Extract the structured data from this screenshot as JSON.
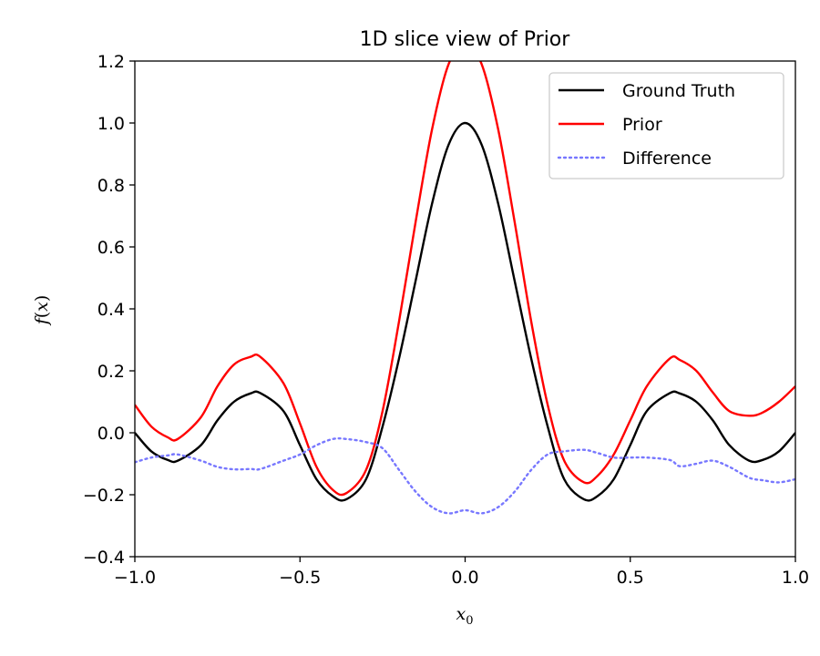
{
  "chart_data": {
    "type": "line",
    "title": "1D slice view of Prior",
    "xlabel": "x",
    "xlabel_sub": "0",
    "ylabel_f": "f",
    "ylabel_paren_open": "(",
    "ylabel_x": "x",
    "ylabel_paren_close": ")",
    "xlim": [
      -1.0,
      1.0
    ],
    "ylim": [
      -0.4,
      1.2
    ],
    "xticks": [
      -1.0,
      -0.5,
      0.0,
      0.5,
      1.0
    ],
    "xtick_labels": [
      "−1.0",
      "−0.5",
      "0.0",
      "0.5",
      "1.0"
    ],
    "yticks": [
      -0.4,
      -0.2,
      0.0,
      0.2,
      0.4,
      0.6,
      0.8,
      1.0,
      1.2
    ],
    "ytick_labels": [
      "−0.4",
      "−0.2",
      "0.0",
      "0.2",
      "0.4",
      "0.6",
      "0.8",
      "1.0",
      "1.2"
    ],
    "grid": false,
    "legend_position": "top-right",
    "x": [
      -1.0,
      -0.95,
      -0.9,
      -0.87,
      -0.8,
      -0.75,
      -0.7,
      -0.65,
      -0.62,
      -0.55,
      -0.5,
      -0.45,
      -0.4,
      -0.36,
      -0.3,
      -0.25,
      -0.2,
      -0.15,
      -0.1,
      -0.05,
      0.0,
      0.05,
      0.1,
      0.15,
      0.2,
      0.25,
      0.3,
      0.36,
      0.4,
      0.45,
      0.5,
      0.55,
      0.62,
      0.65,
      0.7,
      0.75,
      0.8,
      0.86,
      0.9,
      0.95,
      1.0
    ],
    "series": [
      {
        "name": "Ground Truth",
        "color": "#000000",
        "style": "solid",
        "values": [
          0.0,
          -0.06,
          -0.088,
          -0.09,
          -0.04,
          0.04,
          0.1,
          0.127,
          0.128,
          0.07,
          -0.04,
          -0.15,
          -0.205,
          -0.215,
          -0.15,
          0.02,
          0.24,
          0.49,
          0.74,
          0.93,
          1.0,
          0.93,
          0.74,
          0.49,
          0.24,
          0.02,
          -0.15,
          -0.215,
          -0.205,
          -0.15,
          -0.04,
          0.07,
          0.128,
          0.127,
          0.1,
          0.04,
          -0.04,
          -0.09,
          -0.088,
          -0.06,
          0.0
        ]
      },
      {
        "name": "Prior",
        "color": "#ff0000",
        "style": "solid",
        "values": [
          0.09,
          0.02,
          -0.015,
          -0.02,
          0.05,
          0.15,
          0.22,
          0.245,
          0.245,
          0.16,
          0.03,
          -0.11,
          -0.185,
          -0.195,
          -0.12,
          0.07,
          0.36,
          0.68,
          0.98,
          1.19,
          1.25,
          1.19,
          0.98,
          0.68,
          0.36,
          0.09,
          -0.09,
          -0.16,
          -0.14,
          -0.07,
          0.04,
          0.15,
          0.24,
          0.235,
          0.2,
          0.13,
          0.07,
          0.055,
          0.065,
          0.1,
          0.15
        ]
      },
      {
        "name": "Difference",
        "color": "#7777ff",
        "style": "dotted",
        "values": [
          -0.095,
          -0.08,
          -0.073,
          -0.07,
          -0.09,
          -0.11,
          -0.118,
          -0.117,
          -0.117,
          -0.09,
          -0.07,
          -0.04,
          -0.02,
          -0.02,
          -0.03,
          -0.05,
          -0.12,
          -0.19,
          -0.24,
          -0.26,
          -0.25,
          -0.26,
          -0.24,
          -0.19,
          -0.12,
          -0.07,
          -0.06,
          -0.055,
          -0.065,
          -0.08,
          -0.08,
          -0.08,
          -0.088,
          -0.108,
          -0.1,
          -0.09,
          -0.11,
          -0.145,
          -0.153,
          -0.16,
          -0.15
        ]
      }
    ]
  }
}
